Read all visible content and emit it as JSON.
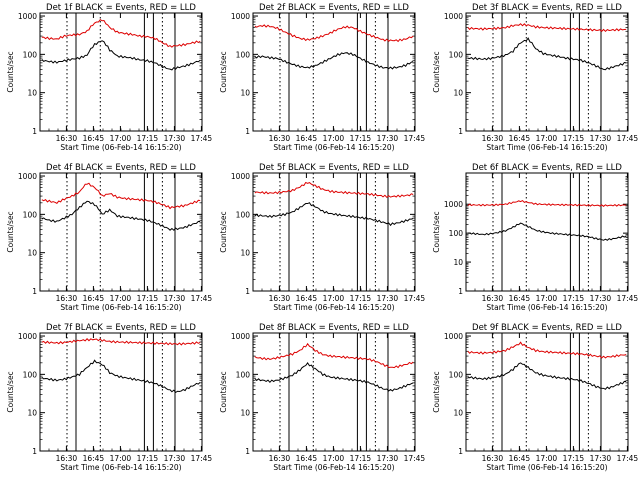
{
  "figure": {
    "background": "#ffffff",
    "event_color": "#000000",
    "lld_color": "#dd0000",
    "marker_color": "#000000"
  },
  "chart_data": [
    {
      "type": "line",
      "title": "Det 1f BLACK = Events, RED = LLD",
      "ylabel": "Counts/sec",
      "xlabel": "Start Time (06-Feb-14 16:15:20)",
      "x_tick_labels": [
        "16:30",
        "16:45",
        "17:00",
        "17:15",
        "17:30",
        "17:45"
      ],
      "y_tick_labels": [
        "1",
        "10",
        "100",
        "1000"
      ],
      "yscale": "log",
      "ylim": [
        1,
        1200
      ],
      "series": [
        {
          "color": "red",
          "values": [
            280,
            260,
            250,
            300,
            320,
            330,
            400,
            650,
            800,
            500,
            380,
            350,
            330,
            300,
            290,
            260,
            200,
            160,
            170,
            180,
            200,
            220
          ]
        },
        {
          "color": "black",
          "values": [
            70,
            65,
            62,
            68,
            75,
            80,
            95,
            180,
            230,
            130,
            90,
            85,
            80,
            72,
            68,
            60,
            48,
            40,
            45,
            50,
            58,
            70
          ]
        }
      ],
      "markers_dotted_min": [
        15,
        33.5,
        68
      ],
      "markers_solid_min": [
        20,
        58,
        63,
        75
      ]
    },
    {
      "type": "line",
      "title": "Det 2f BLACK = Events, RED = LLD",
      "ylabel": "Counts/sec",
      "xlabel": "Start Time (06-Feb-14 16:15:20)",
      "x_tick_labels": [
        "16:30",
        "16:45",
        "17:00",
        "17:15",
        "17:30",
        "17:45"
      ],
      "y_tick_labels": [
        "1",
        "10",
        "100",
        "1000"
      ],
      "yscale": "log",
      "ylim": [
        1,
        1200
      ],
      "series": [
        {
          "color": "red",
          "values": [
            520,
            560,
            540,
            480,
            380,
            310,
            260,
            240,
            260,
            300,
            360,
            450,
            520,
            500,
            400,
            330,
            280,
            240,
            230,
            230,
            250,
            300
          ]
        },
        {
          "color": "black",
          "values": [
            85,
            88,
            82,
            78,
            65,
            55,
            48,
            45,
            50,
            62,
            78,
            98,
            110,
            100,
            78,
            62,
            52,
            45,
            44,
            46,
            52,
            65
          ]
        }
      ],
      "markers_dotted_min": [
        15,
        33.5,
        68
      ],
      "markers_solid_min": [
        20,
        58,
        63,
        75
      ]
    },
    {
      "type": "line",
      "title": "Det 3f BLACK = Events, RED = LLD",
      "ylabel": "Counts/sec",
      "xlabel": "Start Time (06-Feb-14 16:15:20)",
      "x_tick_labels": [
        "16:30",
        "16:45",
        "17:00",
        "17:15",
        "17:30",
        "17:45"
      ],
      "y_tick_labels": [
        "1",
        "10",
        "100",
        "1000"
      ],
      "yscale": "log",
      "ylim": [
        1,
        1200
      ],
      "series": [
        {
          "color": "red",
          "values": [
            480,
            470,
            460,
            470,
            480,
            500,
            560,
            600,
            580,
            520,
            500,
            490,
            480,
            470,
            460,
            450,
            440,
            430,
            420,
            430,
            440,
            450
          ]
        },
        {
          "color": "black",
          "values": [
            80,
            78,
            75,
            78,
            85,
            95,
            120,
            200,
            250,
            140,
            105,
            95,
            88,
            80,
            75,
            70,
            60,
            50,
            40,
            45,
            52,
            60
          ]
        }
      ],
      "markers_dotted_min": [
        15,
        33.5,
        68
      ],
      "markers_solid_min": [
        20,
        58,
        63,
        75
      ]
    },
    {
      "type": "line",
      "title": "Det 4f BLACK = Events, RED = LLD",
      "ylabel": "Counts/sec",
      "xlabel": "Start Time (06-Feb-14 16:15:20)",
      "x_tick_labels": [
        "16:30",
        "16:45",
        "17:00",
        "17:15",
        "17:30",
        "17:45"
      ],
      "y_tick_labels": [
        "1",
        "10",
        "100",
        "1000"
      ],
      "yscale": "log",
      "ylim": [
        1,
        1200
      ],
      "series": [
        {
          "color": "red",
          "values": [
            240,
            220,
            200,
            250,
            300,
            380,
            650,
            500,
            300,
            350,
            280,
            260,
            250,
            240,
            230,
            210,
            180,
            150,
            160,
            170,
            200,
            230
          ]
        },
        {
          "color": "black",
          "values": [
            80,
            70,
            65,
            80,
            100,
            150,
            220,
            180,
            100,
            130,
            90,
            85,
            80,
            75,
            70,
            60,
            50,
            40,
            42,
            46,
            55,
            65
          ]
        }
      ],
      "markers_dotted_min": [
        15,
        33.5,
        68
      ],
      "markers_solid_min": [
        20,
        58,
        63,
        75
      ]
    },
    {
      "type": "line",
      "title": "Det 5f BLACK = Events, RED = LLD",
      "ylabel": "Counts/sec",
      "xlabel": "Start Time (06-Feb-14 16:15:20)",
      "x_tick_labels": [
        "16:30",
        "16:45",
        "17:00",
        "17:15",
        "17:30",
        "17:45"
      ],
      "y_tick_labels": [
        "1",
        "10",
        "100",
        "1000"
      ],
      "yscale": "log",
      "ylim": [
        1,
        1200
      ],
      "series": [
        {
          "color": "red",
          "values": [
            380,
            370,
            360,
            370,
            390,
            420,
            520,
            680,
            560,
            450,
            400,
            380,
            370,
            360,
            350,
            340,
            320,
            300,
            290,
            300,
            310,
            330
          ]
        },
        {
          "color": "black",
          "values": [
            95,
            92,
            88,
            92,
            100,
            115,
            150,
            200,
            160,
            120,
            105,
            98,
            92,
            88,
            82,
            78,
            70,
            62,
            55,
            60,
            68,
            78
          ]
        }
      ],
      "markers_dotted_min": [
        15,
        33.5,
        68
      ],
      "markers_solid_min": [
        20,
        58,
        63,
        75
      ]
    },
    {
      "type": "line",
      "title": "Det 6f BLACK = Events, RED = LLD",
      "ylabel": "Counts/sec",
      "xlabel": "Start Time (06-Feb-14 16:15:20)",
      "x_tick_labels": [
        "16:30",
        "16:45",
        "17:00",
        "17:15",
        "17:30",
        "17:45"
      ],
      "y_tick_labels": [
        "1",
        "10",
        "100",
        "1000"
      ],
      "yscale": "log",
      "ylim": [
        1,
        12000
      ],
      "series": [
        {
          "color": "red",
          "values": [
            950,
            940,
            930,
            940,
            960,
            1000,
            1150,
            1300,
            1150,
            1020,
            990,
            970,
            960,
            950,
            940,
            930,
            920,
            910,
            900,
            910,
            920,
            930
          ]
        },
        {
          "color": "black",
          "values": [
            100,
            95,
            90,
            95,
            105,
            120,
            160,
            220,
            170,
            125,
            110,
            100,
            95,
            90,
            86,
            82,
            75,
            65,
            58,
            62,
            70,
            80
          ]
        }
      ],
      "markers_dotted_min": [
        15,
        33.5,
        68
      ],
      "markers_solid_min": [
        20,
        58,
        63,
        75
      ]
    },
    {
      "type": "line",
      "title": "Det 7f BLACK = Events, RED = LLD",
      "ylabel": "Counts/sec",
      "xlabel": "Start Time (06-Feb-14 16:15:20)",
      "x_tick_labels": [
        "16:30",
        "16:45",
        "17:00",
        "17:15",
        "17:30",
        "17:45"
      ],
      "y_tick_labels": [
        "1",
        "10",
        "100",
        "1000"
      ],
      "yscale": "log",
      "ylim": [
        1,
        1200
      ],
      "series": [
        {
          "color": "red",
          "values": [
            700,
            680,
            660,
            680,
            720,
            760,
            800,
            820,
            780,
            720,
            700,
            690,
            680,
            670,
            660,
            650,
            640,
            630,
            620,
            630,
            650,
            680
          ]
        },
        {
          "color": "black",
          "values": [
            80,
            75,
            70,
            75,
            85,
            100,
            150,
            220,
            180,
            110,
            90,
            82,
            76,
            70,
            65,
            58,
            48,
            38,
            35,
            40,
            50,
            62
          ]
        }
      ],
      "markers_dotted_min": [
        15,
        33.5,
        68
      ],
      "markers_solid_min": [
        20,
        58,
        63,
        75
      ]
    },
    {
      "type": "line",
      "title": "Det 8f BLACK = Events, RED = LLD",
      "ylabel": "Counts/sec",
      "xlabel": "Start Time (06-Feb-14 16:15:20)",
      "x_tick_labels": [
        "16:30",
        "16:45",
        "17:00",
        "17:15",
        "17:30",
        "17:45"
      ],
      "y_tick_labels": [
        "1",
        "10",
        "100",
        "1000"
      ],
      "yscale": "log",
      "ylim": [
        1,
        1200
      ],
      "series": [
        {
          "color": "red",
          "values": [
            280,
            260,
            250,
            270,
            300,
            340,
            420,
            600,
            420,
            330,
            300,
            290,
            280,
            270,
            260,
            250,
            220,
            180,
            150,
            160,
            180,
            210
          ]
        },
        {
          "color": "black",
          "values": [
            75,
            70,
            66,
            70,
            80,
            95,
            130,
            190,
            140,
            100,
            85,
            80,
            76,
            72,
            68,
            62,
            52,
            42,
            38,
            42,
            50,
            60
          ]
        }
      ],
      "markers_dotted_min": [
        15,
        33.5,
        68
      ],
      "markers_solid_min": [
        20,
        58,
        63,
        75
      ]
    },
    {
      "type": "line",
      "title": "Det 9f BLACK = Events, RED = LLD",
      "ylabel": "Counts/sec",
      "xlabel": "Start Time (06-Feb-14 16:15:20)",
      "x_tick_labels": [
        "16:30",
        "16:45",
        "17:00",
        "17:15",
        "17:30",
        "17:45"
      ],
      "y_tick_labels": [
        "1",
        "10",
        "100",
        "1000"
      ],
      "yscale": "log",
      "ylim": [
        1,
        1200
      ],
      "series": [
        {
          "color": "red",
          "values": [
            380,
            370,
            360,
            370,
            390,
            420,
            520,
            650,
            500,
            420,
            390,
            380,
            370,
            360,
            350,
            340,
            320,
            300,
            280,
            290,
            310,
            330
          ]
        },
        {
          "color": "black",
          "values": [
            85,
            80,
            76,
            80,
            88,
            100,
            135,
            200,
            150,
            110,
            95,
            88,
            82,
            78,
            74,
            68,
            58,
            48,
            42,
            46,
            55,
            65
          ]
        }
      ],
      "markers_dotted_min": [
        15,
        33.5,
        68
      ],
      "markers_solid_min": [
        20,
        58,
        63,
        75
      ]
    }
  ]
}
